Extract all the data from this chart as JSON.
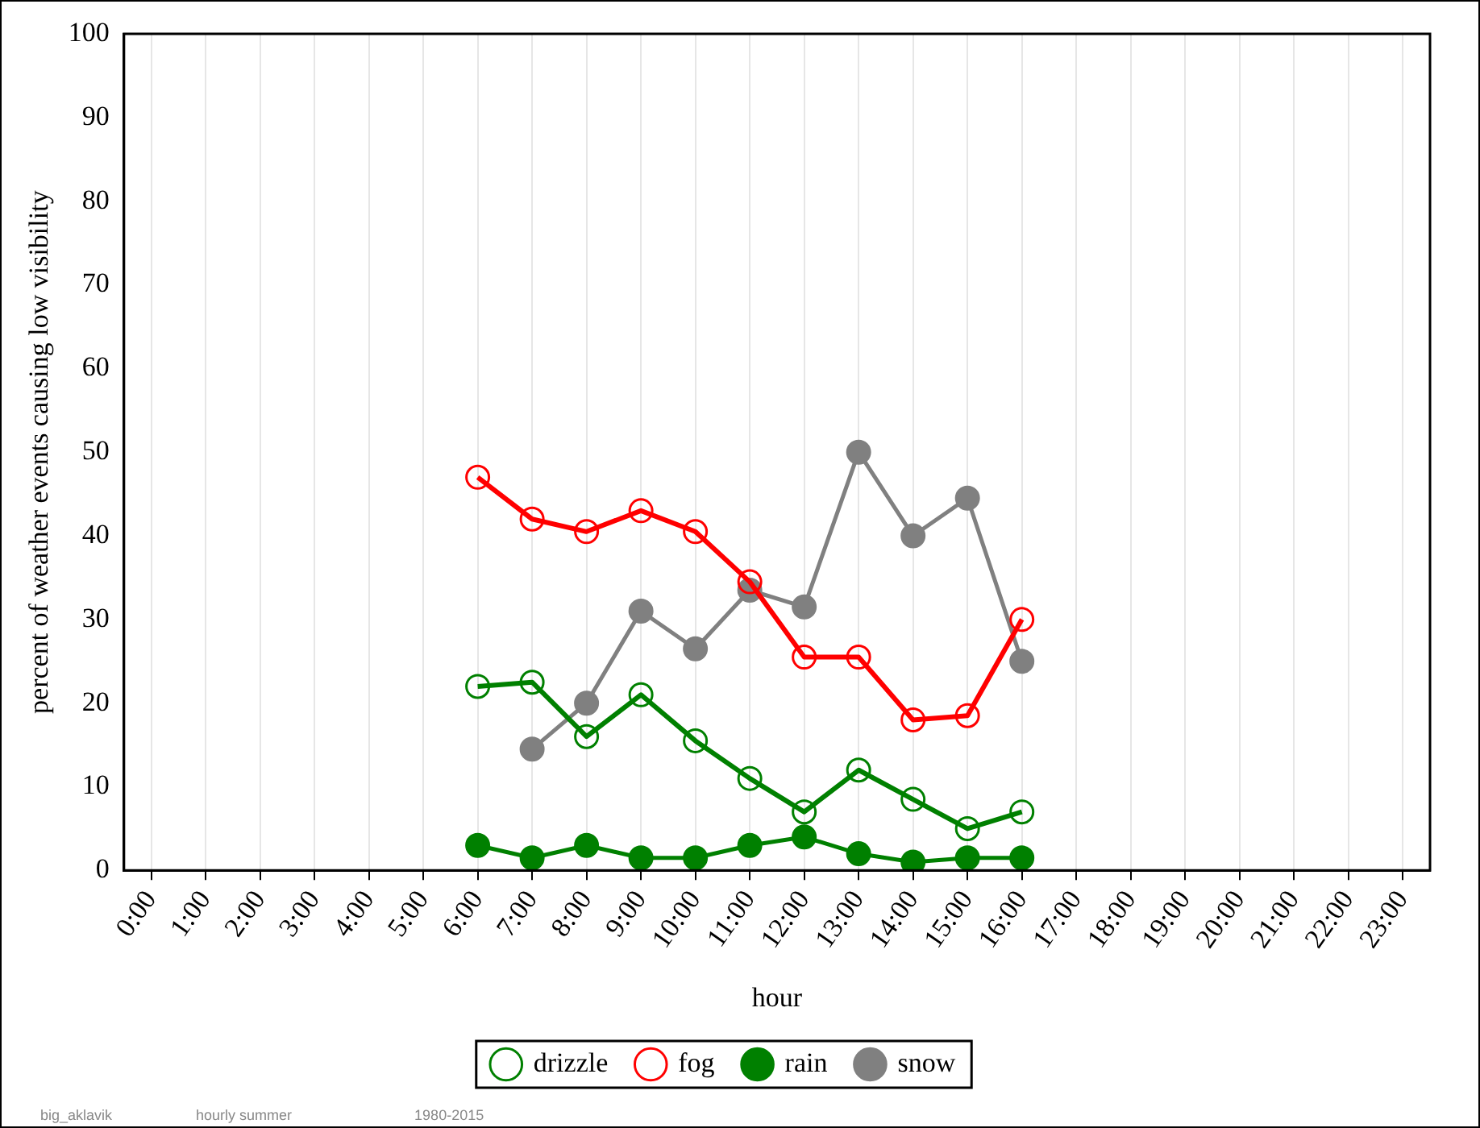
{
  "chart_data": {
    "type": "line",
    "xlabel": "hour",
    "ylabel": "percent of weather events causing low visibility",
    "categories": [
      "0:00",
      "1:00",
      "2:00",
      "3:00",
      "4:00",
      "5:00",
      "6:00",
      "7:00",
      "8:00",
      "9:00",
      "10:00",
      "11:00",
      "12:00",
      "13:00",
      "14:00",
      "15:00",
      "16:00",
      "17:00",
      "18:00",
      "19:00",
      "20:00",
      "21:00",
      "22:00",
      "23:00"
    ],
    "ylim": [
      0,
      100
    ],
    "yticks": [
      0,
      10,
      20,
      30,
      40,
      50,
      60,
      70,
      80,
      90,
      100
    ],
    "grid": "x",
    "legend": "bottom",
    "line_style": "solid",
    "series": [
      {
        "name": "drizzle",
        "color": "#008000",
        "marker": "circle-open",
        "values": [
          null,
          null,
          null,
          null,
          null,
          null,
          22,
          22.5,
          16,
          21,
          15.5,
          11,
          7,
          12,
          8.5,
          5,
          7,
          null,
          null,
          null,
          null,
          null,
          null,
          null
        ]
      },
      {
        "name": "fog",
        "color": "#ff0000",
        "marker": "circle-open",
        "values": [
          null,
          null,
          null,
          null,
          null,
          null,
          47,
          42,
          40.5,
          43,
          40.5,
          34.5,
          25.5,
          25.5,
          18,
          18.5,
          30,
          null,
          null,
          null,
          null,
          null,
          null,
          null
        ]
      },
      {
        "name": "rain",
        "color": "#008000",
        "marker": "circle",
        "values": [
          null,
          null,
          null,
          null,
          null,
          null,
          3,
          1.5,
          3,
          1.5,
          1.5,
          3,
          4,
          2,
          1,
          1.5,
          1.5,
          null,
          null,
          null,
          null,
          null,
          null,
          null
        ]
      },
      {
        "name": "snow",
        "color": "#808080",
        "marker": "circle",
        "values": [
          null,
          null,
          null,
          null,
          null,
          null,
          null,
          14.5,
          20,
          31,
          26.5,
          33.5,
          31.5,
          50,
          40,
          44.5,
          25,
          null,
          null,
          null,
          null,
          null,
          null,
          null
        ]
      }
    ],
    "annotations": [
      "big_aklavik",
      "hourly summer",
      "1980-2015"
    ]
  }
}
